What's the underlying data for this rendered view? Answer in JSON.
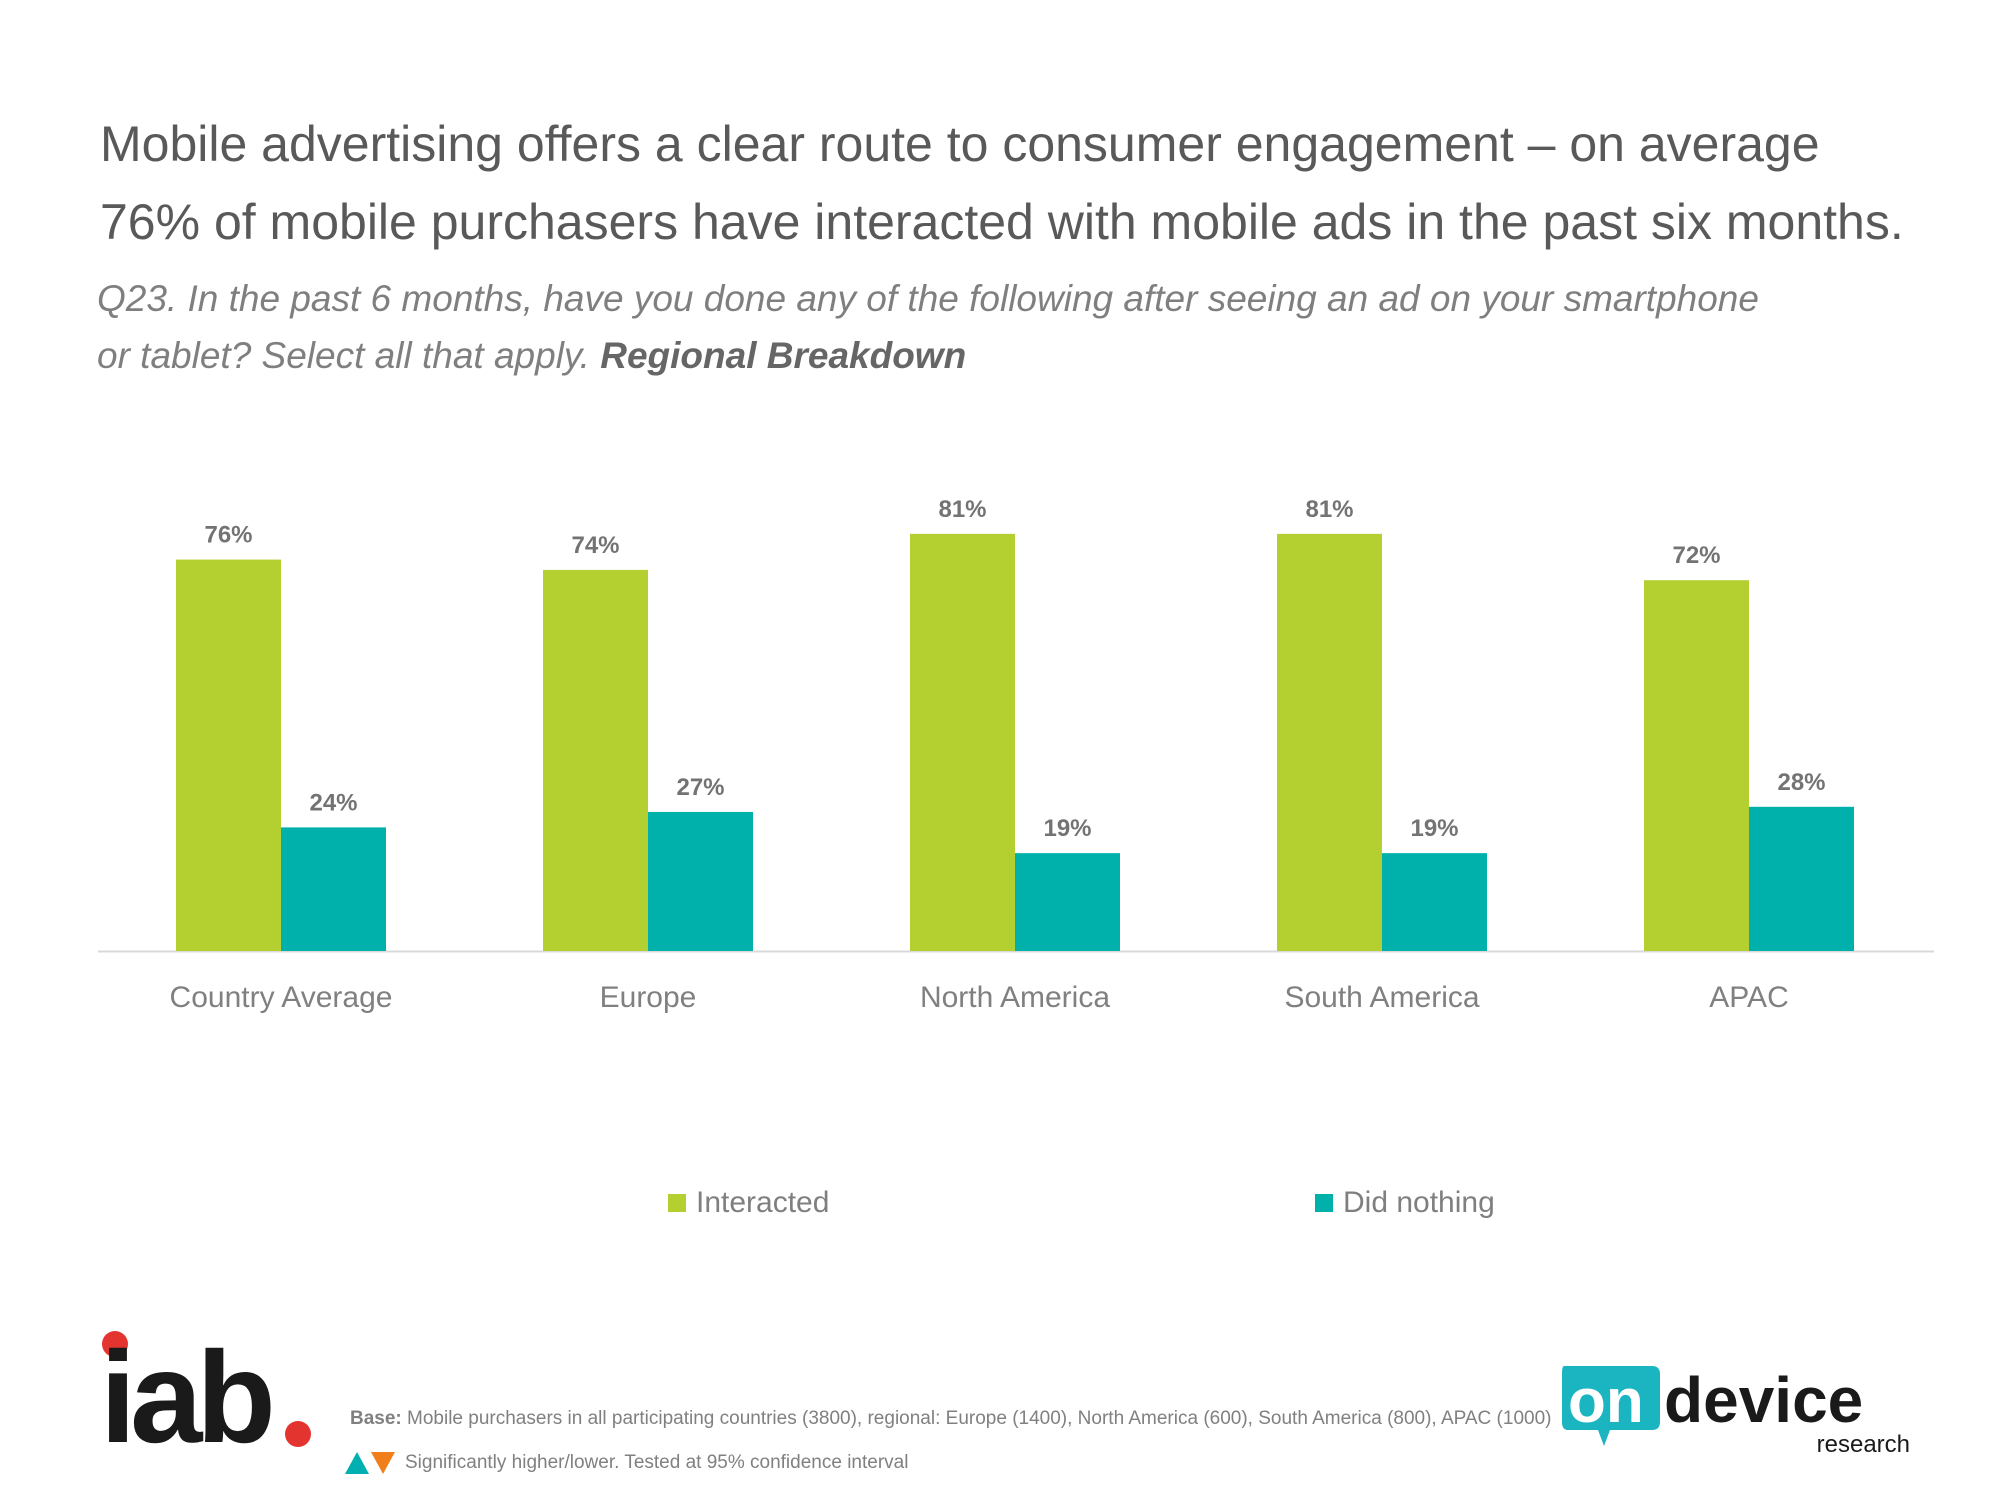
{
  "header": {
    "title_line1": "Mobile advertising offers a clear route to consumer engagement  – on average",
    "title_line2": "76% of mobile purchasers have interacted with mobile ads in the past six months.",
    "question_line1": "Q23. In the past 6 months, have you done any of the following after seeing an ad on your smartphone",
    "question_line2_prefix": "or tablet? Select all that apply. ",
    "question_line2_bold": "Regional Breakdown"
  },
  "chart_data": {
    "type": "bar",
    "categories": [
      "Country Average",
      "Europe",
      "North America",
      "South America",
      "APAC"
    ],
    "series": [
      {
        "name": "Interacted",
        "values": [
          76,
          74,
          81,
          81,
          72
        ],
        "color": "#b3cf30"
      },
      {
        "name": "Did nothing",
        "values": [
          24,
          27,
          19,
          19,
          28
        ],
        "color": "#00b0ab"
      }
    ],
    "value_suffix": "%",
    "ylim": [
      0,
      100
    ],
    "grid": false,
    "legend_position": "bottom"
  },
  "legend": {
    "interacted_label": "Interacted",
    "did_nothing_label": "Did nothing"
  },
  "footer": {
    "base_bold": "Base:",
    "base_text": " Mobile purchasers in all participating countries (3800), regional:  Europe (1400), North America (600), South America (800), APAC (1000)",
    "significance": "Significantly higher/lower. Tested at 95% confidence interval"
  },
  "logos": {
    "iab": "iab",
    "ondevice_main_on": "on",
    "ondevice_main_device": "device",
    "ondevice_sub": "research"
  },
  "colors": {
    "accent_green": "#b3cf30",
    "accent_teal": "#00b0ab",
    "iab_red": "#e3342f",
    "up_arrow": "#00b0b0",
    "down_arrow": "#f07f1b"
  }
}
